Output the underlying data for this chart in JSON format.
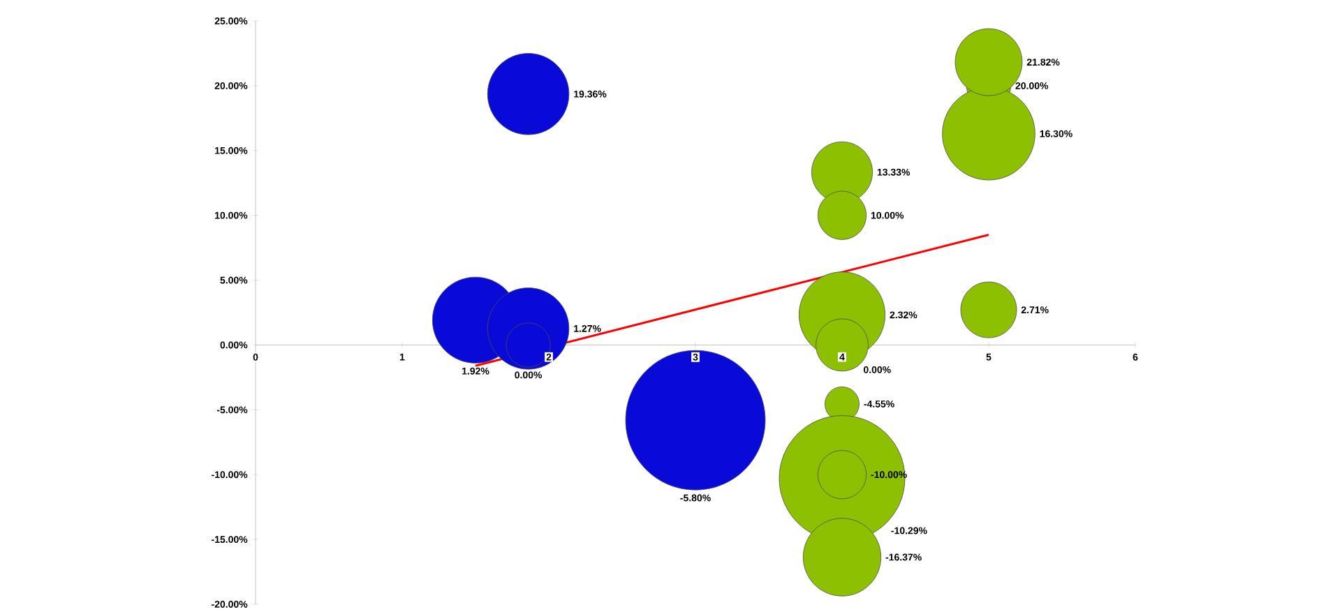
{
  "chart_data": {
    "type": "bubble",
    "xlim": [
      0,
      6
    ],
    "xticks": [
      0,
      1,
      2,
      3,
      4,
      5,
      6
    ],
    "ylim": [
      -20,
      25
    ],
    "yticks": [
      {
        "value": -20,
        "label": "-20.00%"
      },
      {
        "value": -15,
        "label": "-15.00%"
      },
      {
        "value": -10,
        "label": "-10.00%"
      },
      {
        "value": -5,
        "label": "-5.00%"
      },
      {
        "value": 0,
        "label": "0.00%"
      },
      {
        "value": 5,
        "label": "5.00%"
      },
      {
        "value": 10,
        "label": "10.00%"
      },
      {
        "value": 15,
        "label": "15.00%"
      },
      {
        "value": 20,
        "label": "20.00%"
      },
      {
        "value": 25,
        "label": "25.00%"
      }
    ],
    "grid": false,
    "series": [
      {
        "color": "#0a0ad8",
        "x": [
          1.86,
          1.5,
          1.86,
          1.86,
          3
        ],
        "values": [
          19.36,
          1.92,
          1.27,
          0.0,
          -5.8
        ],
        "sizes": [
          0.34,
          0.38,
          0.34,
          0.1,
          1
        ],
        "value_labels": [
          "19.36%",
          "1.92%",
          "1.27%",
          "0.00%",
          "-5.80%"
        ]
      },
      {
        "color": "#8dc000",
        "x": [
          5,
          5,
          5,
          5,
          4,
          4,
          4,
          4,
          4,
          4,
          4,
          4
        ],
        "values": [
          20.0,
          16.3,
          21.82,
          2.71,
          13.33,
          10.0,
          2.32,
          0.0,
          -4.55,
          -10.29,
          -10.0,
          -16.37
        ],
        "sizes": [
          0.1,
          0.44,
          0.23,
          0.16,
          0.19,
          0.12,
          0.38,
          0.14,
          0.06,
          0.81,
          0.12,
          0.31
        ],
        "value_labels": [
          "20.00%",
          "16.30%",
          "21.82%",
          "2.71%",
          "13.33%",
          "10.00%",
          "2.32%",
          "0.00%",
          "-4.55%",
          "-10.29%",
          "-10.00%",
          "-16.37%"
        ]
      },
      {
        "type": "line",
        "color": "#ff0000",
        "x": [
          1.5,
          5
        ],
        "values": [
          -1.6,
          8.5
        ]
      }
    ]
  }
}
